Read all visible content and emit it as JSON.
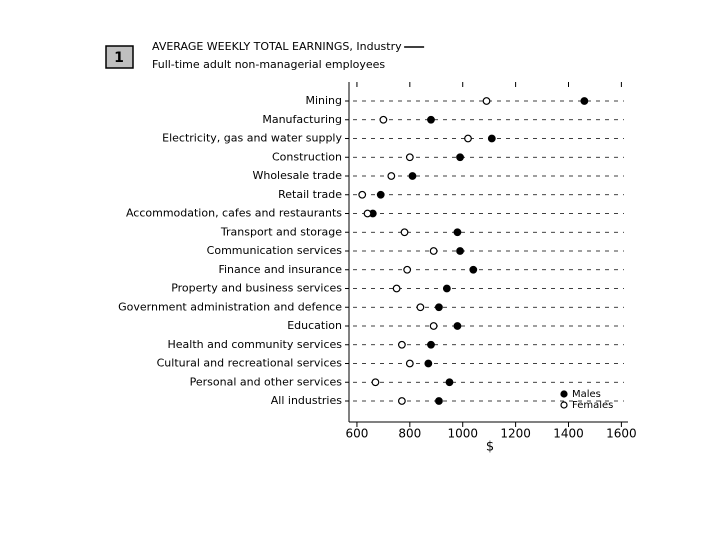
{
  "chart_data": {
    "type": "dot",
    "figure_number": "1",
    "title": "AVERAGE WEEKLY TOTAL EARNINGS, Industry",
    "subtitle": "Full-time adult non-managerial employees",
    "x_label": "$",
    "categories": [
      "Mining",
      "Manufacturing",
      "Electricity, gas and water supply",
      "Construction",
      "Wholesale trade",
      "Retail trade",
      "Accommodation, cafes and restaurants",
      "Transport and storage",
      "Communication services",
      "Finance and insurance",
      "Property and business services",
      "Government administration and defence",
      "Education",
      "Health and community services",
      "Cultural and recreational services",
      "Personal and other services",
      "All industries"
    ],
    "series": [
      {
        "name": "Males",
        "color": "#000000",
        "fill": "#000000",
        "values": [
          1460,
          880,
          1110,
          990,
          810,
          690,
          660,
          980,
          990,
          1040,
          940,
          910,
          980,
          880,
          870,
          950,
          910
        ]
      },
      {
        "name": "Females",
        "color": "#000000",
        "fill": "#ffffff",
        "values": [
          1090,
          700,
          1020,
          800,
          730,
          620,
          640,
          780,
          890,
          790,
          750,
          840,
          890,
          770,
          800,
          670,
          770
        ]
      }
    ],
    "xlim": [
      570,
      1625
    ],
    "xticks": [
      600,
      800,
      1000,
      1200,
      1400,
      1600
    ],
    "grid": true,
    "legend": "lower right"
  }
}
